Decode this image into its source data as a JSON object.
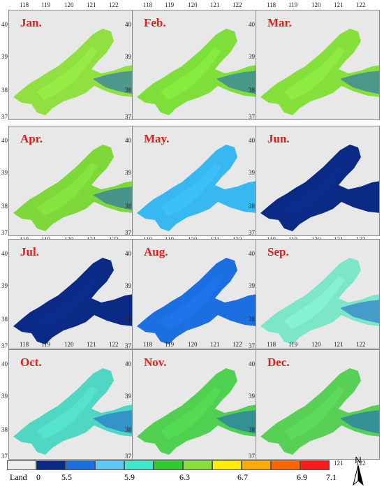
{
  "panels": [
    {
      "month": "Jan.",
      "shade": "#8fe040"
    },
    {
      "month": "Feb.",
      "shade": "#7fdf3a"
    },
    {
      "month": "Mar.",
      "shade": "#86e03c"
    },
    {
      "month": "Apr.",
      "shade": "#7ed83a"
    },
    {
      "month": "May.",
      "shade": "#38b8f0"
    },
    {
      "month": "Jun.",
      "shade": "#0a2a86"
    },
    {
      "month": "Jul.",
      "shade": "#0a2a86"
    },
    {
      "month": "Aug.",
      "shade": "#1c6fe0"
    },
    {
      "month": "Sep.",
      "shade": "#7de6c8"
    },
    {
      "month": "Oct.",
      "shade": "#4fd7c3"
    },
    {
      "month": "Nov.",
      "shade": "#50d050"
    },
    {
      "month": "Dec.",
      "shade": "#57d055"
    }
  ],
  "axes": {
    "x_ticks": [
      "118",
      "119",
      "120",
      "121",
      "122"
    ],
    "y_ticks": [
      "40",
      "39",
      "38",
      "37"
    ]
  },
  "legend": {
    "land_label": "Land",
    "colors": [
      "#ececec",
      "#0a2a86",
      "#1c6fe0",
      "#5ec8f5",
      "#3ee8c8",
      "#2ecc2e",
      "#86e03c",
      "#ffee00",
      "#ffaa00",
      "#ff6600",
      "#ff1a1a"
    ],
    "labels": [
      "0",
      "5.5",
      "5.9",
      "6.3",
      "6.7",
      "6.9",
      "7.1"
    ]
  },
  "north_arrow": {
    "label": "N"
  }
}
